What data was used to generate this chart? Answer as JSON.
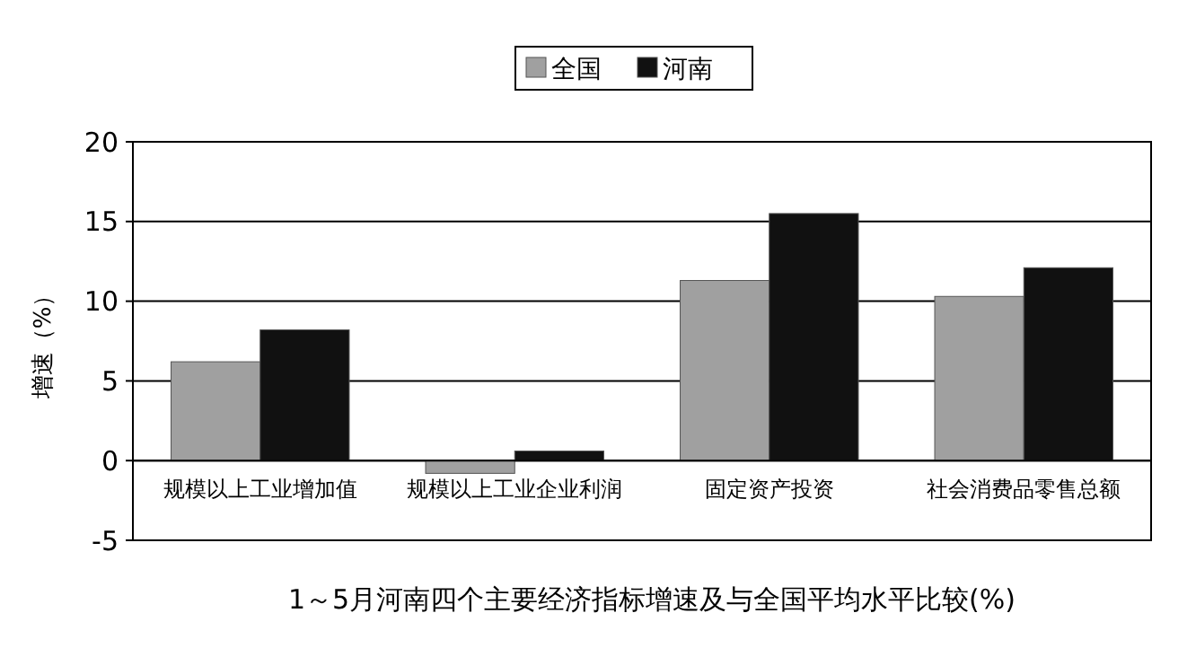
{
  "chart_data": {
    "type": "bar",
    "title": "1～5月河南四个主要经济指标增速及与全国平均水平比较(%)",
    "ylabel": "增速（%）",
    "categories": [
      "规模以上工业增加值",
      "规模以上工业企业利润",
      "固定资产投资",
      "社会消费品零售总额"
    ],
    "series": [
      {
        "name": "全国",
        "color": "#a0a0a0",
        "values": [
          6.2,
          -0.8,
          11.3,
          10.3
        ]
      },
      {
        "name": "河南",
        "color": "#111111",
        "values": [
          8.2,
          0.6,
          15.5,
          12.1
        ]
      }
    ],
    "ylim": [
      -5,
      20
    ],
    "yticks": [
      -5,
      0,
      5,
      10,
      15,
      20
    ],
    "grid": "y",
    "legend": "top"
  }
}
